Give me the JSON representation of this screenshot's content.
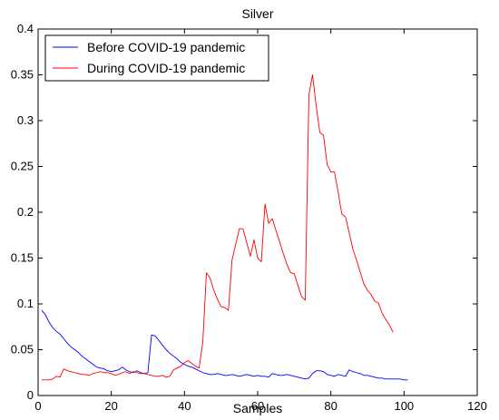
{
  "chart_data": {
    "type": "line",
    "title": "Silver",
    "xlabel": "Samples",
    "ylabel": "",
    "xlim": [
      0,
      120
    ],
    "ylim": [
      0,
      0.4
    ],
    "xticks": [
      "0",
      "20",
      "40",
      "60",
      "80",
      "100",
      "120"
    ],
    "yticks": [
      "0",
      "0.05",
      "0.1",
      "0.15",
      "0.2",
      "0.25",
      "0.3",
      "0.35",
      "0.4"
    ],
    "grid": false,
    "legend_position": "top-left",
    "series": [
      {
        "name": "Before COVID-19 pandemic",
        "color": "#0000ff",
        "x": [
          1,
          2,
          3,
          4,
          5,
          6,
          7,
          8,
          9,
          10,
          11,
          12,
          13,
          14,
          15,
          16,
          17,
          18,
          19,
          20,
          21,
          22,
          23,
          24,
          25,
          26,
          27,
          28,
          29,
          30,
          31,
          32,
          33,
          34,
          35,
          36,
          37,
          38,
          39,
          40,
          41,
          42,
          43,
          44,
          45,
          46,
          47,
          48,
          49,
          50,
          51,
          52,
          53,
          54,
          55,
          56,
          57,
          58,
          59,
          60,
          61,
          62,
          63,
          64,
          65,
          66,
          67,
          68,
          69,
          70,
          71,
          72,
          73,
          74,
          75,
          76,
          77,
          78,
          79,
          80,
          81,
          82,
          83,
          84,
          85,
          86,
          87,
          88,
          89,
          90,
          91,
          92,
          93,
          94,
          95,
          96,
          97,
          98,
          99,
          100,
          101
        ],
        "y": [
          0.093,
          0.088,
          0.08,
          0.074,
          0.07,
          0.067,
          0.062,
          0.057,
          0.053,
          0.05,
          0.047,
          0.043,
          0.04,
          0.037,
          0.034,
          0.031,
          0.03,
          0.029,
          0.027,
          0.026,
          0.027,
          0.028,
          0.031,
          0.028,
          0.026,
          0.025,
          0.027,
          0.025,
          0.024,
          0.025,
          0.066,
          0.065,
          0.06,
          0.055,
          0.05,
          0.046,
          0.043,
          0.04,
          0.036,
          0.034,
          0.032,
          0.031,
          0.029,
          0.027,
          0.025,
          0.024,
          0.023,
          0.023,
          0.024,
          0.023,
          0.022,
          0.022,
          0.023,
          0.022,
          0.021,
          0.022,
          0.023,
          0.022,
          0.021,
          0.022,
          0.021,
          0.021,
          0.02,
          0.024,
          0.023,
          0.022,
          0.022,
          0.023,
          0.022,
          0.021,
          0.02,
          0.019,
          0.018,
          0.019,
          0.024,
          0.027,
          0.027,
          0.026,
          0.023,
          0.022,
          0.021,
          0.023,
          0.022,
          0.021,
          0.028,
          0.026,
          0.025,
          0.024,
          0.022,
          0.022,
          0.021,
          0.02,
          0.019,
          0.019,
          0.018,
          0.018,
          0.018,
          0.018,
          0.018,
          0.017,
          0.017
        ]
      },
      {
        "name": "During COVID-19 pandemic",
        "color": "#ff0000",
        "x": [
          1,
          2,
          3,
          4,
          5,
          6,
          7,
          8,
          9,
          10,
          11,
          12,
          13,
          14,
          15,
          16,
          17,
          18,
          19,
          20,
          21,
          22,
          23,
          24,
          25,
          26,
          27,
          28,
          29,
          30,
          31,
          32,
          33,
          34,
          35,
          36,
          37,
          38,
          39,
          40,
          41,
          42,
          43,
          44,
          45,
          46,
          47,
          48,
          49,
          50,
          51,
          52,
          53,
          54,
          55,
          56,
          57,
          58,
          59,
          60,
          61,
          62,
          63,
          64,
          65,
          66,
          67,
          68,
          69,
          70,
          71,
          72,
          73,
          74,
          75,
          76,
          77,
          78,
          79,
          80,
          81,
          82,
          83,
          84,
          85,
          86,
          87,
          88,
          89,
          90,
          91,
          92,
          93,
          94,
          95,
          96,
          97
        ],
        "y": [
          0.017,
          0.017,
          0.017,
          0.018,
          0.021,
          0.02,
          0.029,
          0.027,
          0.026,
          0.025,
          0.024,
          0.023,
          0.023,
          0.022,
          0.024,
          0.025,
          0.026,
          0.025,
          0.025,
          0.024,
          0.022,
          0.023,
          0.025,
          0.026,
          0.024,
          0.026,
          0.025,
          0.024,
          0.024,
          0.023,
          0.022,
          0.021,
          0.021,
          0.022,
          0.02,
          0.021,
          0.028,
          0.03,
          0.032,
          0.036,
          0.038,
          0.035,
          0.032,
          0.03,
          0.058,
          0.134,
          0.128,
          0.115,
          0.105,
          0.097,
          0.096,
          0.093,
          0.148,
          0.165,
          0.182,
          0.182,
          0.167,
          0.152,
          0.17,
          0.15,
          0.146,
          0.209,
          0.188,
          0.193,
          0.18,
          0.168,
          0.155,
          0.143,
          0.134,
          0.133,
          0.12,
          0.108,
          0.104,
          0.328,
          0.35,
          0.316,
          0.287,
          0.284,
          0.252,
          0.244,
          0.244,
          0.222,
          0.198,
          0.195,
          0.178,
          0.16,
          0.148,
          0.135,
          0.122,
          0.115,
          0.11,
          0.103,
          0.101,
          0.09,
          0.083,
          0.077,
          0.069
        ]
      }
    ]
  }
}
